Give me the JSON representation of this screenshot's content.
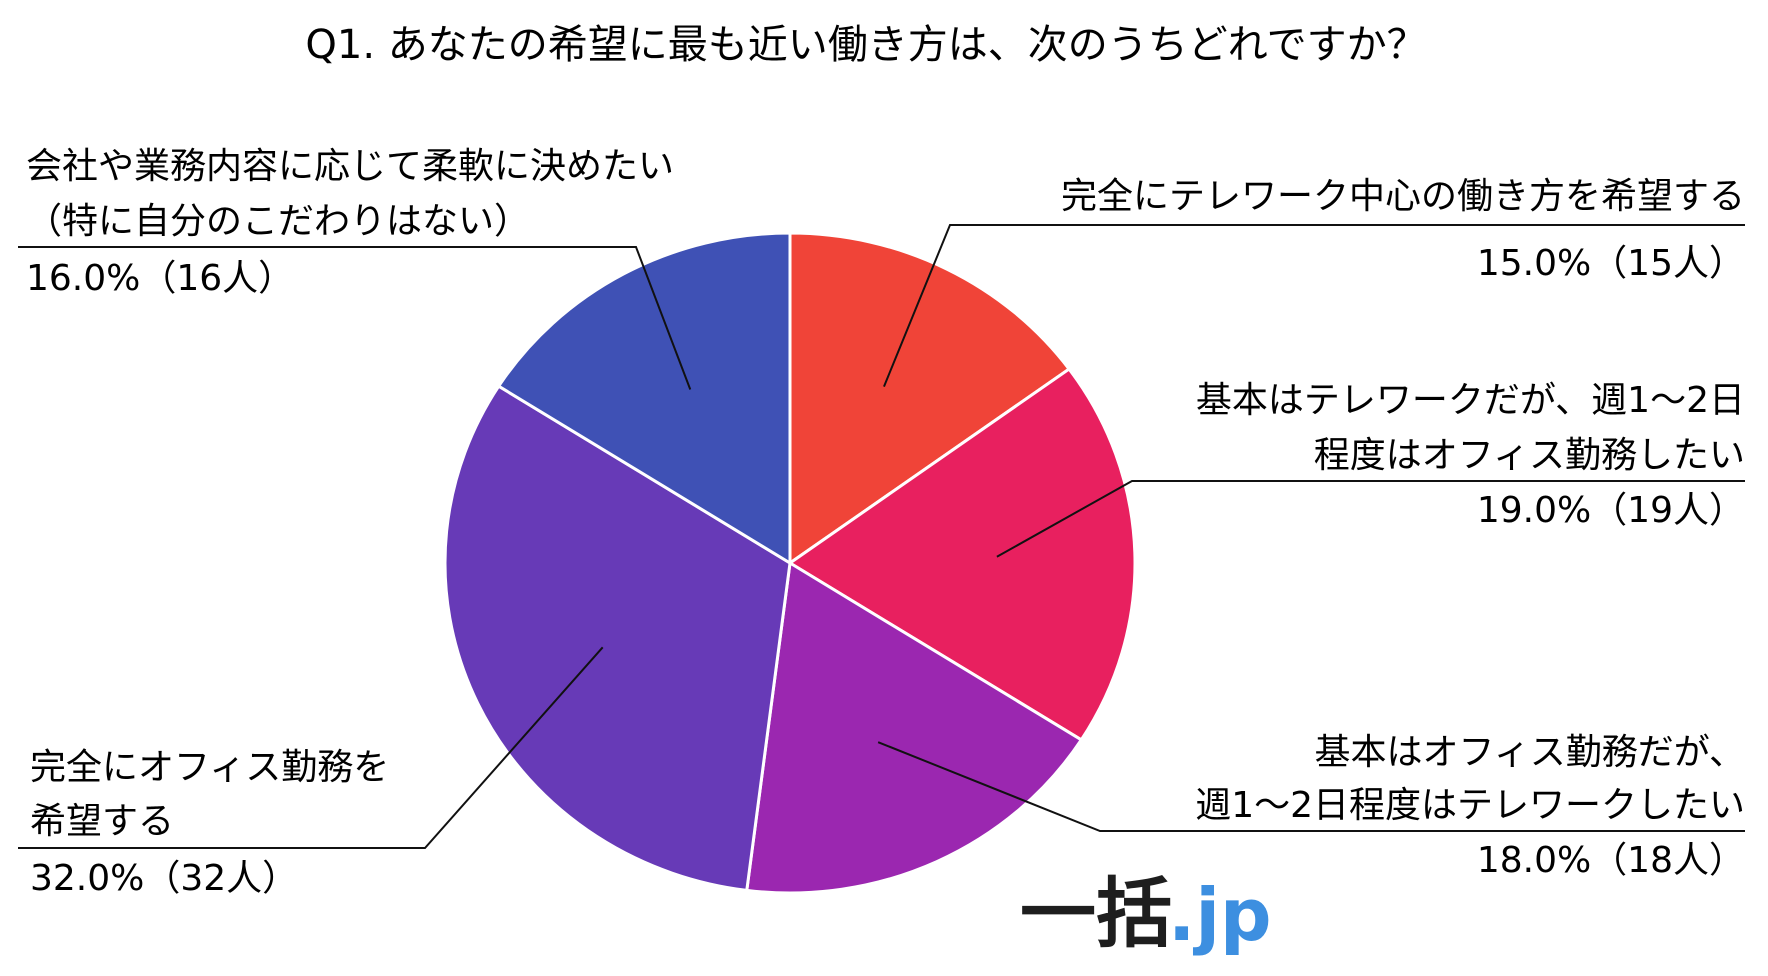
{
  "chart_data": {
    "type": "pie",
    "title": "Q1. あなたの希望に最も近い働き方は、次のうちどれですか？",
    "slices": [
      {
        "lines": [
          "完全にテレワーク中心の働き方を希望する"
        ],
        "value_text": "15.0%（15人）",
        "percent": 15.0,
        "count": 15,
        "color": "#f04438"
      },
      {
        "lines": [
          "基本はテレワークだが、週1～2日",
          "程度はオフィス勤務したい"
        ],
        "value_text": "19.0%（19人）",
        "percent": 19.0,
        "count": 19,
        "color": "#e8205f"
      },
      {
        "lines": [
          "基本はオフィス勤務だが、",
          "週1～2日程度はテレワークしたい"
        ],
        "value_text": "18.0%（18人）",
        "percent": 18.0,
        "count": 18,
        "color": "#9b27b0"
      },
      {
        "lines": [
          "完全にオフィス勤務を",
          "希望する"
        ],
        "value_text": "32.0%（32人）",
        "percent": 32.0,
        "count": 32,
        "color": "#673ab7"
      },
      {
        "lines": [
          "会社や業務内容に応じて柔軟に決めたい",
          "（特に自分のこだわりはない）"
        ],
        "value_text": "16.0%（16人）",
        "percent": 16.0,
        "count": 16,
        "color": "#3f51b5"
      }
    ]
  },
  "logo": {
    "main": "一括",
    "suffix": ".jp"
  }
}
